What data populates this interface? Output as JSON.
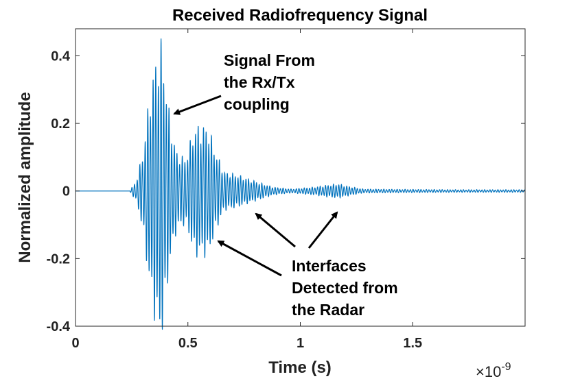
{
  "chart_data": {
    "type": "line",
    "title": "Received Radiofrequency Signal",
    "xlabel": "Time (s)",
    "ylabel": "Normalized amplitude",
    "x_exponent_label": "×10",
    "x_exponent_power": "-9",
    "xlim": [
      0,
      2.0
    ],
    "ylim": [
      -0.4,
      0.48
    ],
    "x_scale_factor": 1e-09,
    "x_ticks": [
      0,
      0.5,
      1,
      1.5
    ],
    "x_tick_labels": [
      "0",
      "0.5",
      "1",
      "1.5"
    ],
    "y_ticks": [
      -0.4,
      -0.2,
      0,
      0.2,
      0.4
    ],
    "y_tick_labels": [
      "-0.4",
      "-0.2",
      "0",
      "0.2",
      "0.4"
    ],
    "grid": false,
    "line_color": "#0072BD",
    "series": [
      {
        "carrier_period": 0.0118,
        "envelope_points": [
          [
            0.0,
            0.0
          ],
          [
            0.24,
            0.0
          ],
          [
            0.27,
            0.03
          ],
          [
            0.3,
            0.12
          ],
          [
            0.33,
            0.3
          ],
          [
            0.36,
            0.42
          ],
          [
            0.38,
            0.46
          ],
          [
            0.4,
            0.36
          ],
          [
            0.42,
            0.22
          ],
          [
            0.45,
            0.12
          ],
          [
            0.49,
            0.1
          ],
          [
            0.53,
            0.2
          ],
          [
            0.56,
            0.2
          ],
          [
            0.59,
            0.2
          ],
          [
            0.62,
            0.13
          ],
          [
            0.66,
            0.06
          ],
          [
            0.72,
            0.05
          ],
          [
            0.8,
            0.03
          ],
          [
            0.88,
            0.012
          ],
          [
            0.96,
            0.006
          ],
          [
            1.06,
            0.012
          ],
          [
            1.12,
            0.018
          ],
          [
            1.17,
            0.022
          ],
          [
            1.21,
            0.015
          ],
          [
            1.28,
            0.006
          ],
          [
            1.45,
            0.005
          ],
          [
            1.7,
            0.004
          ],
          [
            2.0,
            0.004
          ]
        ]
      }
    ]
  },
  "annotations": [
    {
      "lines": [
        "Signal From",
        "the Rx/Tx",
        "coupling"
      ]
    },
    {
      "lines": [
        "Interfaces",
        "Detected from",
        "the Radar"
      ]
    }
  ]
}
